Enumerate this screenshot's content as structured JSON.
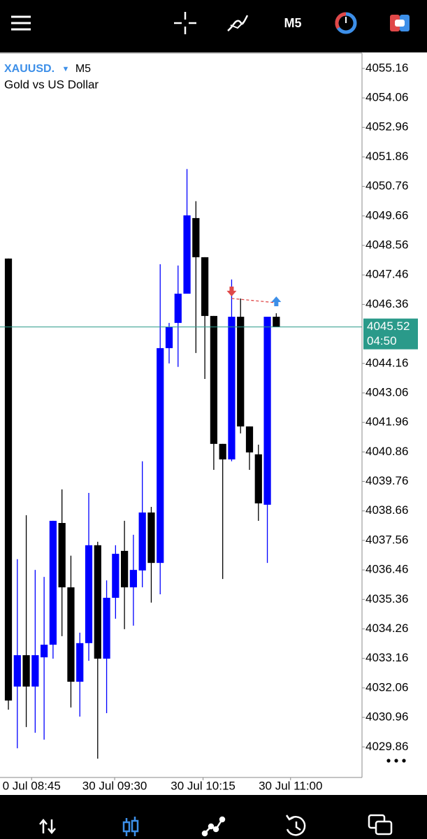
{
  "toolbar": {
    "timeframe": "M5"
  },
  "chart_data": {
    "type": "candlestick",
    "symbol": "XAUUSD.",
    "timeframe": "M5",
    "description": "Gold vs US Dollar",
    "open": [
      4048.07,
      4032.11,
      4033.28,
      4032.11,
      4033.2,
      4033.67,
      4038.21,
      4035.81,
      4032.29,
      4033.73,
      4037.38,
      4033.15,
      4035.42,
      4037.17,
      4035.81,
      4036.44,
      4038.6,
      4036.72,
      4044.73,
      4045.67,
      4046.76,
      4049.58,
      4048.12,
      4045.93,
      4041.16,
      4040.58,
      4045.9,
      4041.81,
      4040.77,
      4038.89,
      4045.9
    ],
    "high": [
      4048.07,
      4036.86,
      4038.5,
      4036.46,
      4036.2,
      4038.29,
      4039.46,
      4036.99,
      4034.12,
      4039.33,
      4037.51,
      4036.07,
      4037.38,
      4038.29,
      4037.77,
      4040.51,
      4038.81,
      4047.86,
      4045.67,
      4047.81,
      4051.41,
      4050.21,
      4048.12,
      4045.93,
      4041.16,
      4047.29,
      4046.58,
      4041.81,
      4041.13,
      4045.9,
      4046.03
    ],
    "low": [
      4031.25,
      4029.81,
      4030.6,
      4030.39,
      4030.13,
      4033.15,
      4033.99,
      4031.33,
      4030.99,
      4033.07,
      4029.42,
      4031.12,
      4034.64,
      4034.25,
      4034.38,
      4035.81,
      4035.24,
      4035.55,
      4044.16,
      4044.03,
      4046.76,
      4044.55,
      4043.58,
      4040.19,
      4036.12,
      4040.51,
      4041.55,
      4040.19,
      4038.29,
      4036.72,
      4045.52
    ],
    "close": [
      4031.59,
      4033.28,
      4032.11,
      4033.28,
      4033.67,
      4038.29,
      4035.81,
      4032.29,
      4033.73,
      4037.38,
      4033.15,
      4035.42,
      4037.06,
      4035.81,
      4036.46,
      4038.6,
      4036.72,
      4044.73,
      4045.52,
      4046.76,
      4049.68,
      4048.12,
      4045.93,
      4041.16,
      4040.58,
      4045.9,
      4041.81,
      4040.84,
      4038.94,
      4045.9,
      4045.52
    ],
    "up_color": "#0000ff",
    "down_color": "#000000",
    "xlim": [
      -0.94,
      39.6
    ],
    "xticks": [
      {
        "value": 2.6,
        "label": "0 Jul 08:45"
      },
      {
        "value": 11.9,
        "label": "30 Jul 09:30"
      },
      {
        "value": 21.8,
        "label": "30 Jul 10:15"
      },
      {
        "value": 31.6,
        "label": "30 Jul 11:00"
      }
    ],
    "ylim": [
      4028.72,
      4055.73
    ],
    "yticks": [
      4055.16,
      4054.06,
      4052.96,
      4051.86,
      4050.76,
      4049.66,
      4048.56,
      4047.46,
      4046.36,
      4044.16,
      4043.06,
      4041.96,
      4040.86,
      4039.76,
      4038.66,
      4037.56,
      4036.46,
      4035.36,
      4034.26,
      4033.16,
      4032.06,
      4030.96,
      4029.86
    ],
    "current_price": 4045.52,
    "current_price_color": "#2a9a8a",
    "countdown": "04:50",
    "trade": {
      "entry_index": 25,
      "entry": 4046.66,
      "exit_index": 30,
      "exit": 4046.5,
      "sell_color": "#e04848",
      "buy_color": "#3d8fe8"
    }
  }
}
